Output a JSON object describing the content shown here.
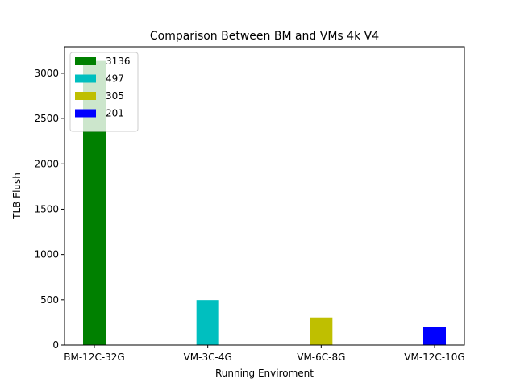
{
  "chart_data": {
    "type": "bar",
    "title": "Comparison Between BM and VMs 4k V4",
    "xlabel": "Running Enviroment",
    "ylabel": "TLB Flush",
    "categories": [
      "BM-12C-32G",
      "VM-3C-4G",
      "VM-6C-8G",
      "VM-12C-10G"
    ],
    "values": [
      3136,
      497,
      305,
      201
    ],
    "colors": [
      "#008000",
      "#00bfbf",
      "#bfbf00",
      "#0000ff"
    ],
    "ylim": [
      0,
      3293
    ],
    "yticks": [
      0,
      500,
      1000,
      1500,
      2000,
      2500,
      3000
    ],
    "legend": {
      "placement": "upper-left",
      "entries": [
        {
          "label": "3136",
          "color": "#008000"
        },
        {
          "label": "497",
          "color": "#00bfbf"
        },
        {
          "label": "305",
          "color": "#bfbf00"
        },
        {
          "label": "201",
          "color": "#0000ff"
        }
      ]
    },
    "grid": false
  }
}
